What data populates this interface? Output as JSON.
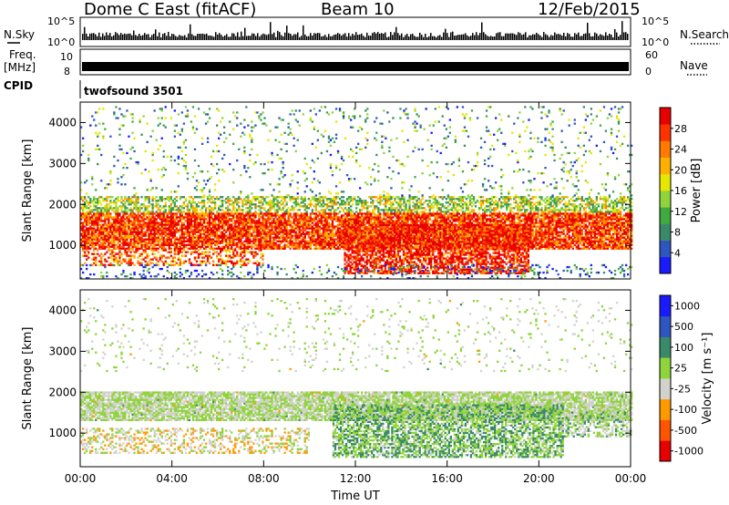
{
  "header": {
    "station": "Dome C East (fitACF)",
    "beam": "Beam 10",
    "date": "12/Feb/2015"
  },
  "strip_panels": {
    "nsky_label": "N.Sky",
    "nsky_ticks": [
      "10^5",
      "10^0"
    ],
    "nsearch_label": "N.Search",
    "nsearch_ticks": [
      "10^5",
      "10^0"
    ],
    "freq_label_line1": "Freq.",
    "freq_label_line2": "[MHz]",
    "freq_ticks": [
      "10",
      "8"
    ],
    "nave_label": "Nave",
    "nave_ticks": [
      "60",
      "0"
    ],
    "cpid_label": "CPID",
    "cpid_value": "twofsound 3501"
  },
  "chart_data": [
    {
      "type": "heatmap",
      "name": "power",
      "xlabel": "",
      "ylabel": "Slant Range [km]",
      "x_ticks": [
        "00:00",
        "04:00",
        "08:00",
        "12:00",
        "16:00",
        "20:00",
        "00:00"
      ],
      "y_ticks": [
        "1000",
        "2000",
        "3000",
        "4000"
      ],
      "xlim": [
        0,
        24
      ],
      "ylim": [
        180,
        4500
      ],
      "colorbar": {
        "label": "Power [dB]",
        "ticks": [
          "4",
          "8",
          "12",
          "16",
          "20",
          "24",
          "28"
        ],
        "range": [
          0,
          30
        ],
        "colors": [
          "#1a1aff",
          "#2f55c0",
          "#3a8a6a",
          "#3faa3f",
          "#8fd43a",
          "#e6e600",
          "#ffb000",
          "#ff7a00",
          "#ff3300",
          "#e80000"
        ]
      },
      "bands": [
        {
          "t0": 0,
          "t1": 24,
          "r0": 900,
          "r1": 1800,
          "level": 26,
          "density": 0.85
        },
        {
          "t0": 0,
          "t1": 24,
          "r0": 1800,
          "r1": 2200,
          "level": 14,
          "density": 0.55
        },
        {
          "t0": 0,
          "t1": 24,
          "r0": 2200,
          "r1": 4400,
          "level": 10,
          "density": 0.06
        },
        {
          "t0": 11.5,
          "t1": 19.5,
          "r0": 300,
          "r1": 1500,
          "level": 28,
          "density": 0.7
        },
        {
          "t0": 0,
          "t1": 8,
          "r0": 500,
          "r1": 900,
          "level": 24,
          "density": 0.4
        },
        {
          "t0": 0,
          "t1": 24,
          "r0": 180,
          "r1": 500,
          "level": 6,
          "density": 0.15
        }
      ]
    },
    {
      "type": "heatmap",
      "name": "velocity",
      "xlabel": "Time UT",
      "ylabel": "Slant Range [km]",
      "x_ticks": [
        "00:00",
        "04:00",
        "08:00",
        "12:00",
        "16:00",
        "20:00",
        "00:00"
      ],
      "y_ticks": [
        "1000",
        "2000",
        "3000",
        "4000"
      ],
      "xlim": [
        0,
        24
      ],
      "ylim": [
        180,
        4500
      ],
      "colorbar": {
        "label": "Velocity [m s⁻¹]",
        "ticks": [
          "1000",
          "500",
          "100",
          "25",
          "-25",
          "-100",
          "-500",
          "-1000"
        ],
        "range": [
          -1000,
          1000
        ],
        "colors": [
          "#e80000",
          "#ff5500",
          "#ff9900",
          "#d2d2cc",
          "#8fd43a",
          "#3a8a6a",
          "#2f55c0",
          "#1a1aff"
        ]
      },
      "bands": [
        {
          "t0": 0,
          "t1": 24,
          "r0": 1300,
          "r1": 2000,
          "level": 0,
          "density": 0.85
        },
        {
          "t0": 11,
          "t1": 21,
          "r0": 400,
          "r1": 1700,
          "level": 200,
          "density": 0.65
        },
        {
          "t0": 0,
          "t1": 10,
          "r0": 500,
          "r1": 1100,
          "level": -150,
          "density": 0.35
        },
        {
          "t0": 0,
          "t1": 24,
          "r0": 2500,
          "r1": 4300,
          "level": 0,
          "density": 0.05
        },
        {
          "t0": 21,
          "t1": 24,
          "r0": 900,
          "r1": 1500,
          "level": 80,
          "density": 0.5
        }
      ]
    }
  ]
}
